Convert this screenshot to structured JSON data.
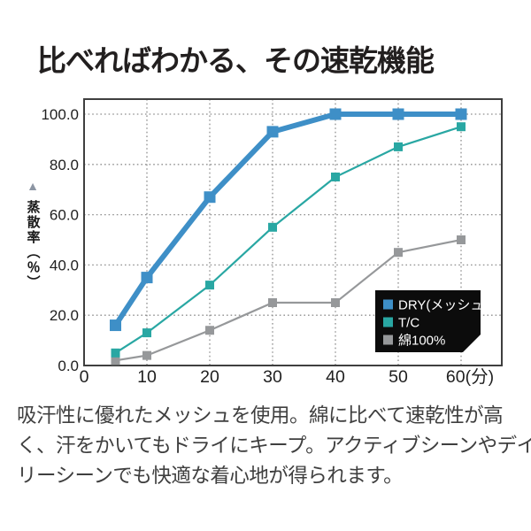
{
  "chart_data": {
    "type": "line",
    "title": "比べればわかる、その速乾機能",
    "ylabel": "蒸散率（％）",
    "ylabel_marker": "▲",
    "x": [
      5,
      10,
      20,
      30,
      40,
      50,
      60
    ],
    "x_ticks": [
      0,
      10,
      20,
      30,
      40,
      50,
      60
    ],
    "x_tick_labels": [
      "0",
      "10",
      "20",
      "30",
      "40",
      "50",
      "60(分)"
    ],
    "y_ticks": [
      0,
      20,
      40,
      60,
      80,
      100
    ],
    "y_tick_labels": [
      "0.0",
      "20.0",
      "40.0",
      "60.0",
      "80.0",
      "100.0"
    ],
    "xlim": [
      0,
      60
    ],
    "ylim": [
      0,
      100
    ],
    "grid": "dotted",
    "legend_position": "inside-bottom-right",
    "series": [
      {
        "name": "DRY(メッシュ)",
        "color": "#3e8fc7",
        "emphasized": true,
        "values": [
          16,
          35,
          67,
          93,
          100,
          100,
          100
        ]
      },
      {
        "name": "T/C",
        "color": "#29a7a3",
        "emphasized": false,
        "values": [
          5,
          13,
          32,
          55,
          75,
          87,
          95
        ]
      },
      {
        "name": "綿100%",
        "color": "#96989a",
        "emphasized": false,
        "values": [
          2,
          4,
          14,
          25,
          25,
          45,
          50
        ]
      }
    ],
    "colors": {
      "grid": "#8f8f8f",
      "plot_border": "#3f3f3f",
      "tick_text": "#1f1f1f",
      "legend_bg": "#0c0c0c",
      "legend_text": "#ffffff",
      "gray_marker": "#8d9093"
    }
  },
  "description": {
    "lines": [
      "吸汗性に優れたメッシュを使用。綿に比べて速乾性が高",
      "く、汗をかいてもドライにキープ。アクティブシーンやデイ",
      "リーシーンでも快適な着心地が得られます。"
    ]
  }
}
